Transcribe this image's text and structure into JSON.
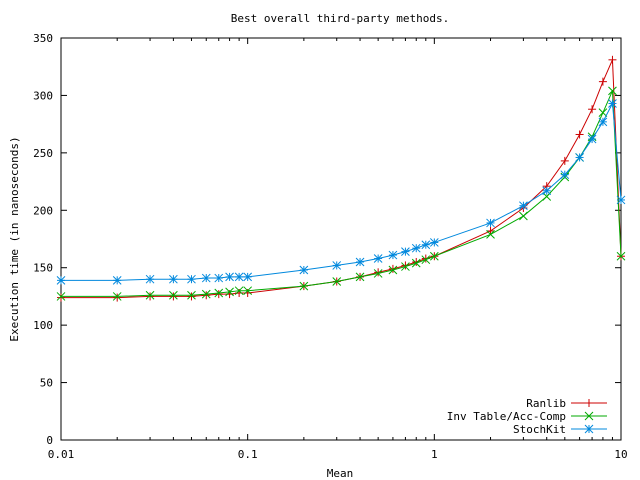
{
  "chart_data": {
    "type": "line",
    "title": "Best overall third-party methods.",
    "xlabel": "Mean",
    "ylabel": "Execution time (in nanoseconds)",
    "xscale": "log",
    "xlim": [
      0.01,
      10
    ],
    "ylim": [
      0,
      350
    ],
    "x_ticks": [
      0.01,
      0.1,
      1,
      10
    ],
    "x_tick_labels": [
      "0.01",
      "0.1",
      "1",
      "10"
    ],
    "y_ticks": [
      0,
      50,
      100,
      150,
      200,
      250,
      300,
      350
    ],
    "y_tick_labels": [
      "0",
      "50",
      "100",
      "150",
      "200",
      "250",
      "300",
      "350"
    ],
    "legend_position": "bottom-right",
    "series": [
      {
        "name": "Ranlib",
        "color": "#cc0000",
        "marker": "plus",
        "x": [
          0.01,
          0.02,
          0.03,
          0.04,
          0.05,
          0.06,
          0.07,
          0.08,
          0.09,
          0.1,
          0.2,
          0.3,
          0.4,
          0.5,
          0.6,
          0.7,
          0.8,
          0.9,
          1,
          2,
          3,
          4,
          5,
          6,
          7,
          8,
          9,
          10
        ],
        "values": [
          124,
          124,
          125,
          125,
          125,
          126,
          127,
          127,
          128,
          128,
          134,
          138,
          142,
          146,
          149,
          152,
          155,
          158,
          160,
          182,
          202,
          221,
          243,
          266,
          288,
          312,
          331,
          160
        ]
      },
      {
        "name": "Inv Table/Acc-Comp",
        "color": "#00aa00",
        "marker": "cross",
        "x": [
          0.01,
          0.02,
          0.03,
          0.04,
          0.05,
          0.06,
          0.07,
          0.08,
          0.09,
          0.1,
          0.2,
          0.3,
          0.4,
          0.5,
          0.6,
          0.7,
          0.8,
          0.9,
          1,
          2,
          3,
          4,
          5,
          6,
          7,
          8,
          9,
          10
        ],
        "values": [
          125,
          125,
          126,
          126,
          126,
          127,
          128,
          129,
          130,
          130,
          134,
          138,
          142,
          145,
          148,
          151,
          154,
          157,
          160,
          179,
          195,
          212,
          229,
          246,
          264,
          285,
          304,
          160
        ]
      },
      {
        "name": "StochKit",
        "color": "#0088dd",
        "marker": "star",
        "x": [
          0.01,
          0.02,
          0.03,
          0.04,
          0.05,
          0.06,
          0.07,
          0.08,
          0.09,
          0.1,
          0.2,
          0.3,
          0.4,
          0.5,
          0.6,
          0.7,
          0.8,
          0.9,
          1,
          2,
          3,
          4,
          5,
          6,
          7,
          8,
          9,
          10
        ],
        "values": [
          139,
          139,
          140,
          140,
          140,
          141,
          141,
          142,
          142,
          142,
          148,
          152,
          155,
          158,
          161,
          164,
          167,
          170,
          172,
          189,
          204,
          217,
          231,
          246,
          262,
          277,
          293,
          209
        ]
      }
    ]
  }
}
